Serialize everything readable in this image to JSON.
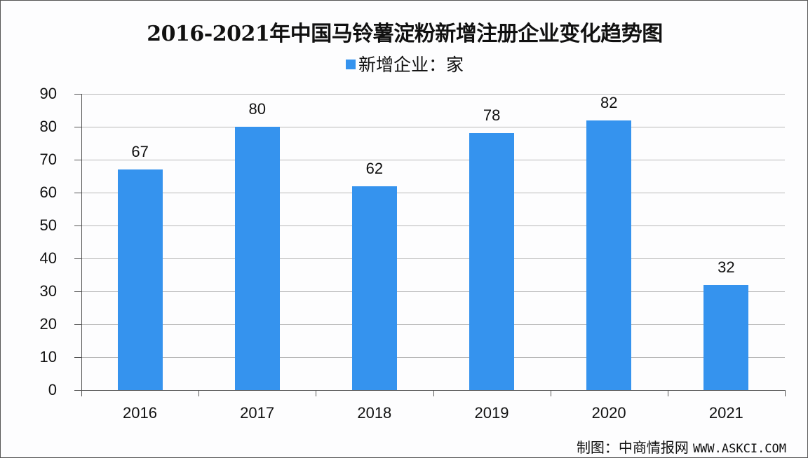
{
  "title": "2016-2021年中国马铃薯淀粉新增注册企业变化趋势图",
  "legend": {
    "label": "新增企业：家",
    "color": "#3593ee"
  },
  "source": {
    "label": "制图：中商情报网",
    "url": "WWW.ASKCI.COM"
  },
  "y_ticks": [
    "0",
    "10",
    "20",
    "30",
    "40",
    "50",
    "60",
    "70",
    "80",
    "90"
  ],
  "chart_data": {
    "type": "bar",
    "title": "2016-2021年中国马铃薯淀粉新增注册企业变化趋势图",
    "xlabel": "",
    "ylabel": "",
    "categories": [
      "2016",
      "2017",
      "2018",
      "2019",
      "2020",
      "2021"
    ],
    "series": [
      {
        "name": "新增企业：家",
        "values": [
          67,
          80,
          62,
          78,
          82,
          32
        ],
        "color": "#3593ee"
      }
    ],
    "ylim": [
      0,
      90
    ],
    "yticks": [
      0,
      10,
      20,
      30,
      40,
      50,
      60,
      70,
      80,
      90
    ],
    "grid": true,
    "legend_position": "top",
    "data_labels": true
  }
}
